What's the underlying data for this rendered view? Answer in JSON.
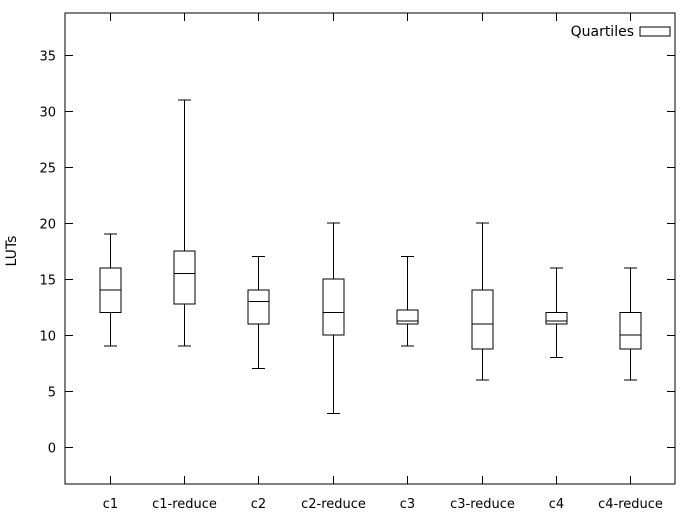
{
  "chart_data": {
    "type": "boxplot",
    "title": "",
    "xlabel": "",
    "ylabel": "LUTs",
    "legend_label": "Quartiles",
    "legend_position": "top-right-inside",
    "grid": false,
    "categories": [
      "c1",
      "c1-reduce",
      "c2",
      "c2-reduce",
      "c3",
      "c3-reduce",
      "c4",
      "c4-reduce"
    ],
    "yticks": [
      0,
      5,
      10,
      15,
      20,
      25,
      30,
      35
    ],
    "ylim": [
      -3.3,
      38.75
    ],
    "xlim": [
      0.4,
      8.6
    ],
    "series": [
      {
        "name": "c1",
        "x": 1,
        "min": 9,
        "q1": 12,
        "median": 14,
        "q3": 16,
        "max": 19
      },
      {
        "name": "c1-reduce",
        "x": 2,
        "min": 9,
        "q1": 12.75,
        "median": 15.5,
        "q3": 17.5,
        "max": 31
      },
      {
        "name": "c2",
        "x": 3,
        "min": 7,
        "q1": 11,
        "median": 13,
        "q3": 14,
        "max": 17
      },
      {
        "name": "c2-reduce",
        "x": 4,
        "min": 3,
        "q1": 10,
        "median": 12,
        "q3": 15,
        "max": 20
      },
      {
        "name": "c3",
        "x": 5,
        "min": 9,
        "q1": 11,
        "median": 11.25,
        "q3": 12.25,
        "max": 17
      },
      {
        "name": "c3-reduce",
        "x": 6,
        "min": 6,
        "q1": 8.75,
        "median": 11,
        "q3": 14,
        "max": 20
      },
      {
        "name": "c4",
        "x": 7,
        "min": 8,
        "q1": 11,
        "median": 11.25,
        "q3": 12,
        "max": 16
      },
      {
        "name": "c4-reduce",
        "x": 8,
        "min": 6,
        "q1": 8.75,
        "median": 10,
        "q3": 12,
        "max": 16
      }
    ],
    "colors": {
      "line": "#000000",
      "background": "#ffffff",
      "box_fill": "#ffffff"
    }
  }
}
